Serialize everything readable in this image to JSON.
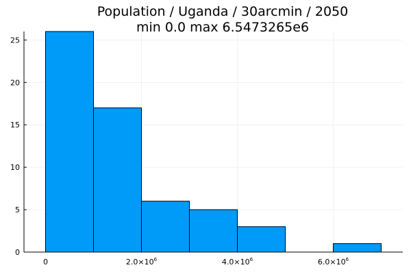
{
  "chart_data": {
    "type": "bar",
    "title_lines": [
      "Population / Uganda / 30arcmin / 2050",
      "min 0.0  max 6.5473265e6"
    ],
    "xlabel": "",
    "ylabel": "",
    "bin_edges": [
      0,
      1000000,
      2000000,
      3000000,
      4000000,
      5000000,
      6000000,
      7000000
    ],
    "values": [
      26,
      17,
      6,
      5,
      3,
      0,
      1
    ],
    "xlim": [
      -450000,
      7450000
    ],
    "ylim": [
      0,
      26
    ],
    "x_ticks": [
      {
        "value": 0,
        "label": "0",
        "sup": ""
      },
      {
        "value": 2000000,
        "label": "2.0×10",
        "sup": "6"
      },
      {
        "value": 4000000,
        "label": "4.0×10",
        "sup": "6"
      },
      {
        "value": 6000000,
        "label": "6.0×10",
        "sup": "6"
      }
    ],
    "y_ticks": [
      0,
      5,
      10,
      15,
      20,
      25
    ],
    "grid": true,
    "legend": "none",
    "bar_color": "#009af9",
    "bar_edge_color": "#000000"
  }
}
